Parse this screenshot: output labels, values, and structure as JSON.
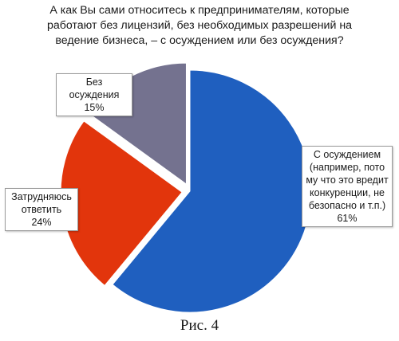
{
  "title_lines": [
    "А как Вы сами относитесь к предпринимателям, которые",
    "работают без лицензий, без необходимых разрешений на",
    "ведение бизнеса, – с осуждением или без осуждения?"
  ],
  "caption": "Рис. 4",
  "chart_data": {
    "type": "pie",
    "title": "А как Вы сами относитесь к предпринимателям, которые работают без лицензий, без необходимых разрешений на ведение бизнеса, – с осуждением или без осуждения?",
    "slices": [
      {
        "label": "С осуждением (например, пото му что это вредит конкуренции, не безопасно и т.п.)",
        "label_lines": [
          "С осуждением",
          "(например, пото",
          "му что это вредит",
          "конкуренции, не",
          "безопасно и т.п.)"
        ],
        "value": 61,
        "value_text": "61%",
        "color": "#1f5fbf"
      },
      {
        "label": "Затрудняюсь ответить",
        "label_lines": [
          "Затрудняюсь",
          "ответить"
        ],
        "value": 24,
        "value_text": "24%",
        "color": "#e2350c"
      },
      {
        "label": "Без осуждения",
        "label_lines": [
          "Без осуждения"
        ],
        "value": 15,
        "value_text": "15%",
        "color": "#74728f"
      }
    ],
    "start_angle_deg": 0,
    "direction": "clockwise",
    "exploded": true,
    "legend": "none"
  }
}
